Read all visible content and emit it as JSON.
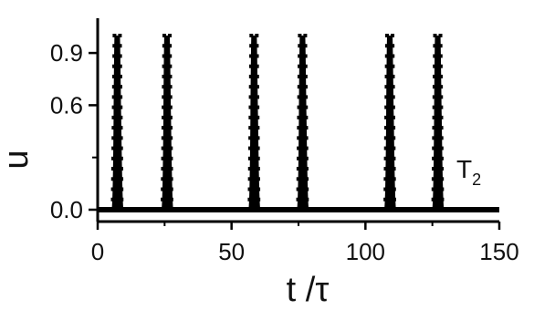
{
  "chart_data": {
    "type": "line",
    "ylabel": "u",
    "xlabel": "t /τ",
    "xlim": [
      0,
      150
    ],
    "ylim": [
      0.0,
      1.0
    ],
    "x_ticks": [
      0,
      50,
      100,
      150
    ],
    "x_tick_labels": [
      "0",
      "50",
      "100",
      "150"
    ],
    "y_ticks": [
      0.0,
      0.6,
      0.9
    ],
    "y_tick_labels": [
      "0.0",
      "0.6",
      "0.9"
    ],
    "annotation": {
      "text": "T",
      "subscript": "2"
    },
    "series": [
      {
        "color": "#000000",
        "baseline": 0.0,
        "spikes": [
          {
            "t": 7.3,
            "peak": 1.0
          },
          {
            "t": 25.9,
            "peak": 1.0
          },
          {
            "t": 58.4,
            "peak": 1.0
          },
          {
            "t": 76.5,
            "peak": 1.0
          },
          {
            "t": 109.1,
            "peak": 1.0
          },
          {
            "t": 127.0,
            "peak": 1.0
          }
        ]
      }
    ]
  }
}
